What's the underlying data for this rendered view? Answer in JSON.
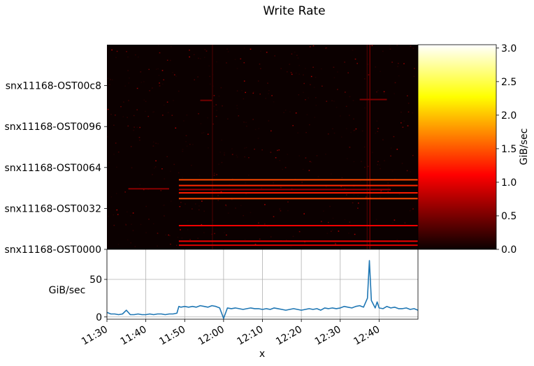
{
  "chart_data": {
    "title": "Write Rate",
    "heatmap": {
      "type": "heatmap",
      "y_tick_labels": [
        "snx11168-OST0000",
        "snx11168-OST0032",
        "snx11168-OST0064",
        "snx11168-OST0096",
        "snx11168-OST00c8"
      ],
      "y_tick_values": [
        0,
        50,
        100,
        150,
        200
      ],
      "y_range": [
        0,
        250
      ],
      "x_range_minutes": [
        0,
        80
      ],
      "colormap": "hot",
      "colorbar": {
        "label": "GiB/sec",
        "range": [
          0,
          3.05
        ],
        "tick_values": [
          0.0,
          0.5,
          1.0,
          1.5,
          2.0,
          2.5,
          3.0
        ],
        "tick_labels": [
          "0.0",
          "0.5",
          "1.0",
          "1.5",
          "2.0",
          "2.5",
          "3.0"
        ]
      },
      "streaks": [
        {
          "row": 85,
          "x_start": 18.5,
          "x_end": 80,
          "value": 1.45
        },
        {
          "row": 78,
          "x_start": 18.5,
          "x_end": 80,
          "value": 1.3
        },
        {
          "row": 69,
          "x_start": 18.5,
          "x_end": 80,
          "value": 1.25
        },
        {
          "row": 62,
          "x_start": 18.5,
          "x_end": 80,
          "value": 1.45
        },
        {
          "row": 29,
          "x_start": 18.5,
          "x_end": 80,
          "value": 1.0
        },
        {
          "row": 10,
          "x_start": 18.5,
          "x_end": 80,
          "value": 1.0
        },
        {
          "row": 5,
          "x_start": 18.5,
          "x_end": 80,
          "value": 0.9
        },
        {
          "row": 73,
          "x_start": 18.5,
          "x_end": 73,
          "value": 0.65
        },
        {
          "row": 74,
          "x_start": 5.5,
          "x_end": 16,
          "value": 0.55
        },
        {
          "row": 182,
          "x_start": 24,
          "x_end": 27,
          "value": 0.45
        },
        {
          "row": 183,
          "x_start": 65,
          "x_end": 72,
          "value": 0.5
        }
      ],
      "hot_columns": [
        {
          "x": 67.5,
          "value": 0.5
        },
        {
          "x": 66.8,
          "value": 0.3
        },
        {
          "x": 27,
          "value": 0.25
        }
      ]
    },
    "timeseries": {
      "type": "line",
      "xlabel": "x",
      "ylabel": "GiB/sec",
      "ylim": [
        -3,
        90
      ],
      "y_ticks": [
        0,
        50
      ],
      "grid": true,
      "x_tick_minutes": [
        0,
        10,
        20,
        30,
        40,
        50,
        60,
        70
      ],
      "x_tick_labels": [
        "11:30",
        "11:40",
        "11:50",
        "12:00",
        "12:10",
        "12:20",
        "12:30",
        "12:40"
      ],
      "line_color": "#1f77b4",
      "x": [
        0,
        1,
        2,
        3,
        4,
        5,
        6,
        7,
        8,
        9,
        10,
        11,
        12,
        13,
        14,
        15,
        16,
        17,
        18,
        18.5,
        19,
        20,
        21,
        22,
        23,
        24,
        25,
        26,
        27,
        28,
        29,
        30,
        31,
        32,
        33,
        34,
        35,
        36,
        37,
        38,
        39,
        40,
        41,
        42,
        43,
        44,
        45,
        46,
        47,
        48,
        49,
        50,
        51,
        52,
        53,
        54,
        55,
        56,
        57,
        58,
        59,
        60,
        61,
        62,
        63,
        64,
        65,
        66,
        67,
        67.5,
        68,
        69,
        69.5,
        70,
        71,
        72,
        73,
        74,
        75,
        76,
        77,
        78,
        79,
        80
      ],
      "y": [
        6,
        4,
        4,
        3,
        4,
        9,
        3,
        3,
        4,
        3,
        3,
        4,
        3,
        4,
        4,
        3,
        4,
        4,
        5,
        14,
        13,
        14,
        13,
        14,
        13,
        15,
        14,
        13,
        15,
        14,
        12,
        -2,
        12,
        11,
        12,
        11,
        10,
        11,
        12,
        11,
        11,
        10,
        11,
        10,
        12,
        11,
        10,
        9,
        10,
        11,
        10,
        9,
        10,
        11,
        10,
        11,
        9,
        12,
        11,
        12,
        11,
        12,
        14,
        13,
        12,
        14,
        15,
        13,
        25,
        75,
        22,
        12,
        20,
        12,
        11,
        14,
        12,
        13,
        11,
        11,
        12,
        10,
        11,
        9
      ]
    }
  }
}
